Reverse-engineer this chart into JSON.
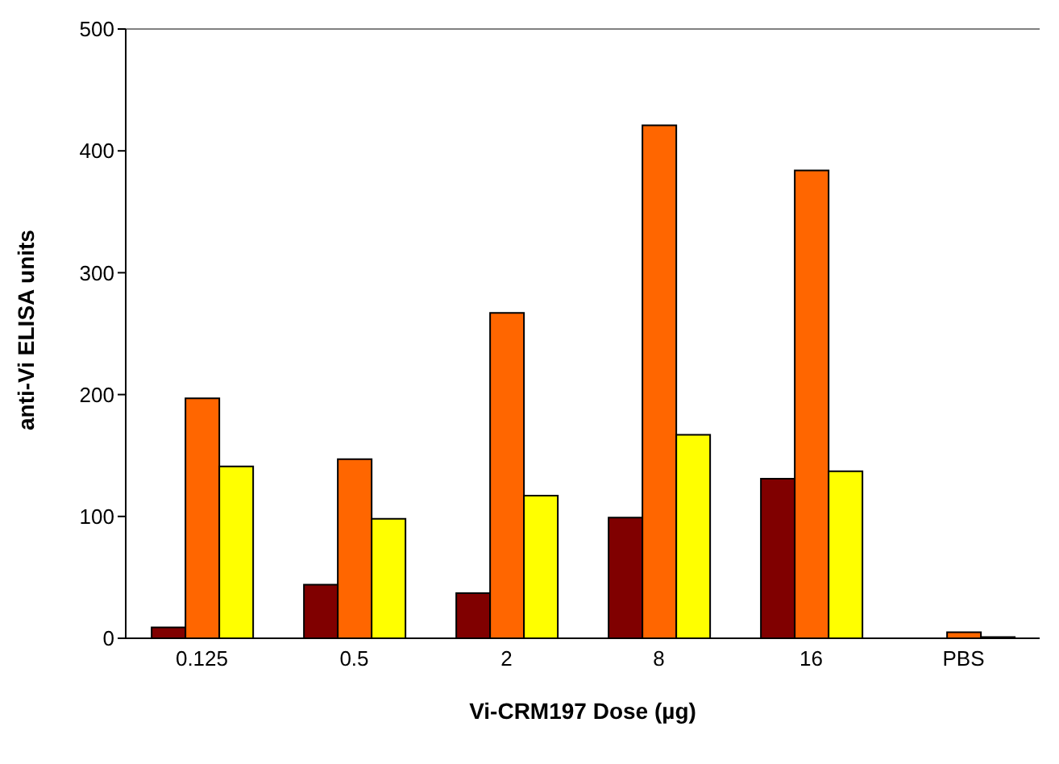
{
  "chart_data": {
    "type": "bar",
    "xlabel": "Vi-CRM197 Dose  (µg)",
    "ylabel": "anti-Vi ELISA units",
    "categories": [
      "0.125",
      "0.5",
      "2",
      "8",
      "16",
      "PBS"
    ],
    "series": [
      {
        "color": "#800000",
        "values": [
          9,
          44,
          37,
          99,
          131,
          0
        ]
      },
      {
        "color": "#ff6600",
        "values": [
          197,
          147,
          267,
          421,
          384,
          5
        ]
      },
      {
        "color": "#ffff00",
        "values": [
          141,
          98,
          117,
          167,
          137,
          1
        ]
      }
    ],
    "ylim": [
      0,
      500
    ],
    "yticks": [
      0,
      100,
      200,
      300,
      400,
      500
    ],
    "legend": false,
    "ref_lines": [
      {
        "axis": "y",
        "value": 500,
        "color": "#808080"
      }
    ]
  }
}
